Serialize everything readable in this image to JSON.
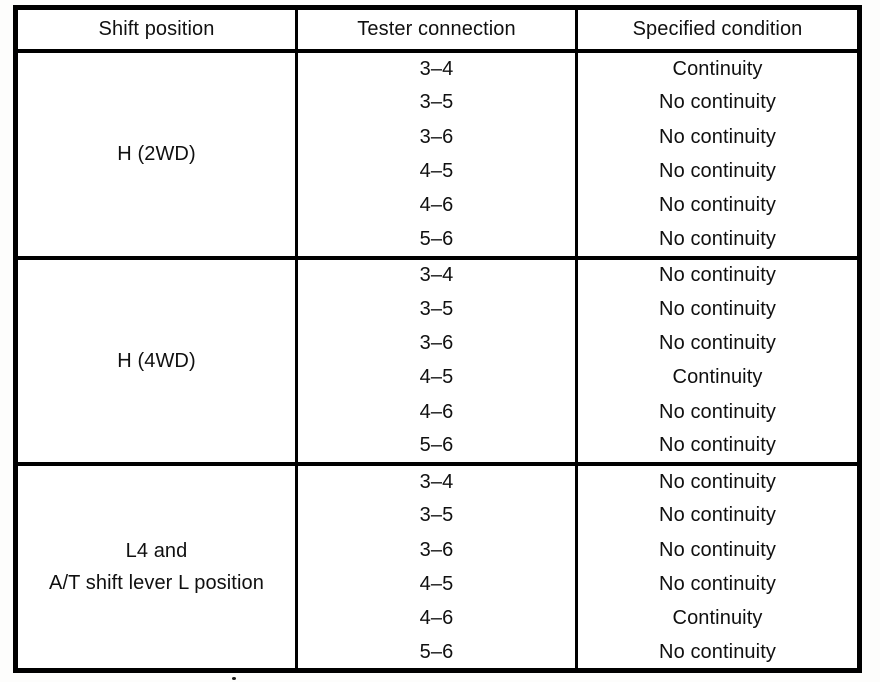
{
  "table": {
    "headers": [
      "Shift position",
      "Tester connection",
      "Specified condition"
    ],
    "groups": [
      {
        "position_lines": [
          "H (2WD)"
        ],
        "rows": [
          {
            "connection": "3–4",
            "condition": "Continuity"
          },
          {
            "connection": "3–5",
            "condition": "No continuity"
          },
          {
            "connection": "3–6",
            "condition": "No continuity"
          },
          {
            "connection": "4–5",
            "condition": "No continuity"
          },
          {
            "connection": "4–6",
            "condition": "No continuity"
          },
          {
            "connection": "5–6",
            "condition": "No continuity"
          }
        ]
      },
      {
        "position_lines": [
          "H (4WD)"
        ],
        "rows": [
          {
            "connection": "3–4",
            "condition": "No continuity"
          },
          {
            "connection": "3–5",
            "condition": "No continuity"
          },
          {
            "connection": "3–6",
            "condition": "No continuity"
          },
          {
            "connection": "4–5",
            "condition": "Continuity"
          },
          {
            "connection": "4–6",
            "condition": "No continuity"
          },
          {
            "connection": "5–6",
            "condition": "No continuity"
          }
        ]
      },
      {
        "position_lines": [
          "L4 and",
          "A/T shift lever L position"
        ],
        "rows": [
          {
            "connection": "3–4",
            "condition": "No continuity"
          },
          {
            "connection": "3–5",
            "condition": "No continuity"
          },
          {
            "connection": "3–6",
            "condition": "No continuity"
          },
          {
            "connection": "4–5",
            "condition": "No continuity"
          },
          {
            "connection": "4–6",
            "condition": "Continuity"
          },
          {
            "connection": "5–6",
            "condition": "No continuity"
          }
        ]
      }
    ],
    "colors": {
      "border": "#000000",
      "background": "#ffffff",
      "text": "#101010"
    }
  }
}
